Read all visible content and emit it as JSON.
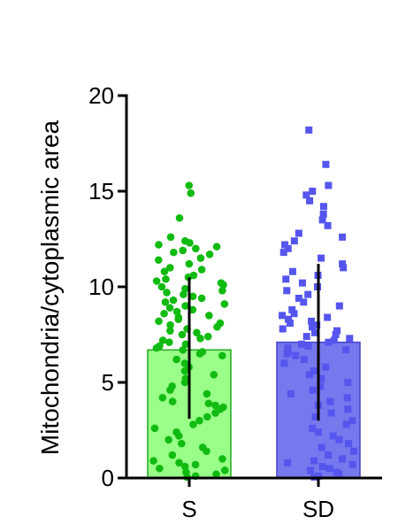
{
  "chart_data": {
    "type": "bar",
    "ylabel": "Mitochondria/cytoplasmic area",
    "ylim": [
      0,
      20
    ],
    "yticks": [
      0,
      5,
      10,
      15,
      20
    ],
    "categories": [
      "S",
      "SD"
    ],
    "series": [
      {
        "category": "S",
        "mean": 6.7,
        "error_low": 3.1,
        "error_high": 10.5,
        "bar_fill": "#99ff88",
        "bar_stroke": "#22aa22",
        "point_color": "#11bb11",
        "point_shape": "circle",
        "points": [
          15.3,
          14.9,
          13.6,
          12.6,
          12.4,
          12.3,
          12.2,
          12.1,
          12.0,
          11.9,
          11.8,
          11.7,
          11.5,
          11.4,
          11.2,
          11.0,
          10.9,
          10.8,
          10.6,
          10.5,
          10.4,
          10.3,
          10.2,
          10.1,
          10.0,
          9.9,
          9.8,
          9.7,
          9.6,
          9.5,
          9.4,
          9.3,
          9.2,
          9.1,
          9.0,
          8.9,
          8.8,
          8.7,
          8.6,
          8.5,
          8.4,
          8.3,
          8.2,
          8.1,
          8.0,
          7.9,
          7.8,
          7.7,
          7.6,
          7.5,
          7.4,
          7.3,
          7.2,
          7.1,
          7.0,
          6.9,
          6.8,
          6.7,
          6.6,
          6.5,
          6.4,
          6.2,
          6.0,
          5.8,
          5.6,
          5.4,
          5.2,
          5.0,
          4.8,
          4.6,
          4.4,
          4.2,
          4.0,
          3.9,
          3.8,
          3.7,
          3.6,
          3.4,
          3.2,
          3.0,
          2.8,
          2.6,
          2.4,
          2.2,
          2.0,
          1.8,
          1.6,
          1.4,
          1.2,
          1.0,
          0.9,
          0.8,
          0.7,
          0.6,
          0.5,
          0.4,
          0.3,
          0.2,
          0.1,
          0.05
        ]
      },
      {
        "category": "SD",
        "mean": 7.1,
        "error_low": 3.0,
        "error_high": 11.2,
        "bar_fill": "#7777ee",
        "bar_stroke": "#4444cc",
        "point_color": "#5555ee",
        "point_shape": "square",
        "points": [
          18.2,
          16.4,
          15.3,
          15.0,
          14.8,
          14.5,
          14.2,
          13.8,
          13.5,
          13.2,
          12.8,
          12.6,
          12.4,
          12.2,
          12.0,
          11.8,
          11.5,
          11.2,
          11.0,
          10.8,
          10.6,
          10.4,
          10.2,
          10.0,
          9.8,
          9.6,
          9.4,
          9.2,
          9.0,
          8.8,
          8.6,
          8.5,
          8.4,
          8.3,
          8.2,
          8.1,
          8.0,
          7.9,
          7.8,
          7.7,
          7.6,
          7.5,
          7.4,
          7.3,
          7.2,
          7.1,
          7.0,
          6.9,
          6.8,
          6.7,
          6.6,
          6.5,
          6.4,
          6.2,
          6.0,
          5.8,
          5.6,
          5.4,
          5.2,
          5.0,
          4.8,
          4.6,
          4.4,
          4.2,
          4.0,
          3.8,
          3.6,
          3.4,
          3.2,
          3.0,
          2.8,
          2.6,
          2.4,
          2.2,
          2.0,
          1.8,
          1.6,
          1.4,
          1.2,
          1.0,
          0.9,
          0.8,
          0.7,
          0.6,
          0.5,
          0.4,
          0.3,
          0.2,
          0.1,
          0.05
        ]
      }
    ]
  }
}
